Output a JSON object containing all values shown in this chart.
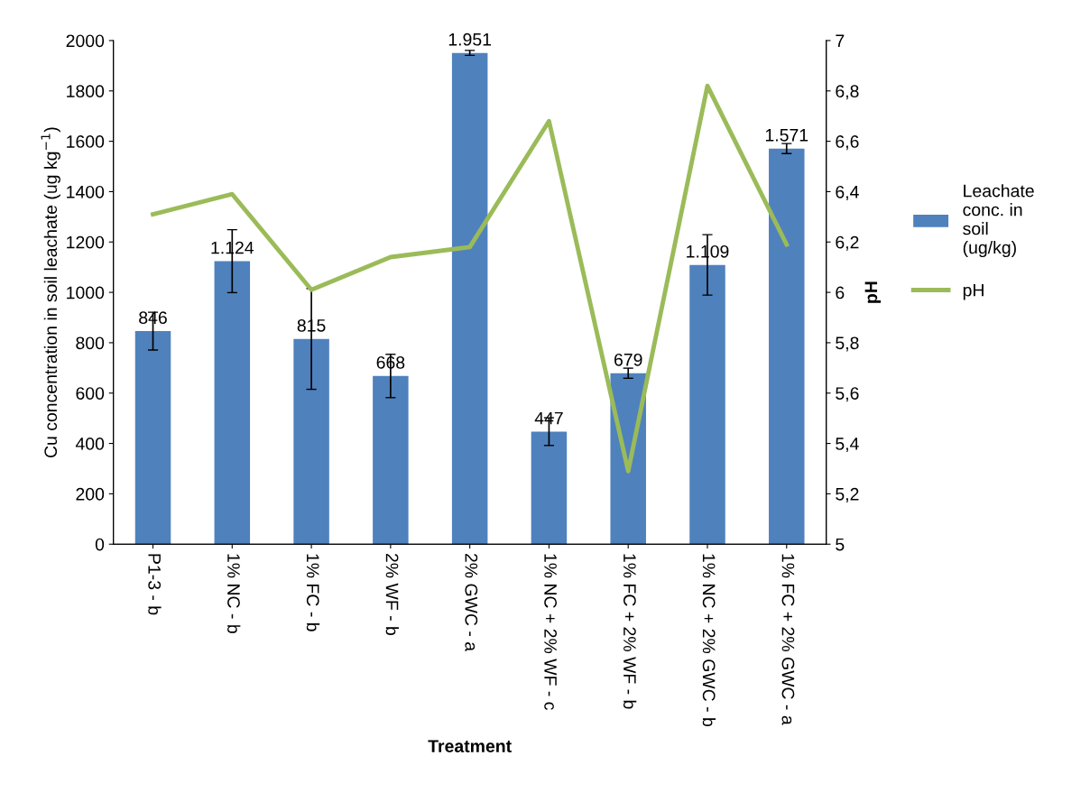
{
  "chart_data": {
    "type": "bar",
    "xlabel": "Treatment",
    "ylabel": "Cu concentration in soil leachate (ug kg$^{−1}$)",
    "y2label": "pH",
    "categories": [
      "P1-3 - b",
      "1% NC - b",
      "1% FC - b",
      "2% WF - b",
      "2% GWC - a",
      "1% NC + 2% WF - c",
      "1% FC + 2% WF - b",
      "1% NC + 2% GWC - b",
      "1% FC + 2% GWC - a"
    ],
    "series": [
      {
        "name": "Leachate conc. in soil (ug/kg)",
        "color": "#4f81bd",
        "values": [
          846,
          1124,
          815,
          668,
          1951,
          447,
          679,
          1109,
          1571
        ],
        "errors": [
          75,
          125,
          200,
          86,
          10,
          55,
          20,
          120,
          20
        ],
        "value_labels": [
          "846",
          "1.124",
          "815",
          "668",
          "1.951",
          "447",
          "679",
          "1.109",
          "1.571"
        ]
      },
      {
        "name": "pH",
        "type": "line",
        "axis": "y2",
        "color": "#9bbb59",
        "values": [
          6.31,
          6.39,
          6.01,
          6.14,
          6.18,
          6.68,
          5.29,
          6.82,
          6.19
        ]
      }
    ],
    "ylim": [
      0,
      2000
    ],
    "yticks": [
      0,
      200,
      400,
      600,
      800,
      1000,
      1200,
      1400,
      1600,
      1800,
      2000
    ],
    "y2lim": [
      5,
      7
    ],
    "y2ticks": [
      5,
      {
        "value": 5.2,
        "label": "5,2"
      },
      {
        "value": 5.4,
        "label": "5,4"
      },
      {
        "value": 5.6,
        "label": "5,6"
      },
      {
        "value": 5.8,
        "label": "5,8"
      },
      6,
      {
        "value": 6.2,
        "label": "6,2"
      },
      {
        "value": 6.4,
        "label": "6,4"
      },
      {
        "value": 6.6,
        "label": "6,6"
      },
      {
        "value": 6.8,
        "label": "6,8"
      },
      7
    ],
    "legend": "right",
    "grid": false
  }
}
